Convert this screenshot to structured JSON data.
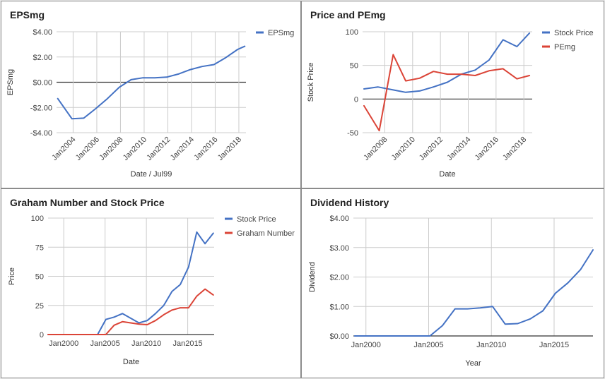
{
  "chart_data": [
    {
      "type": "line",
      "title": "EPSmg",
      "xlabel": "Date / Jul99",
      "ylabel": "EPSmg",
      "x_axis": "date",
      "x_tick_labels": [
        "Jan2004",
        "Jan2006",
        "Jan2008",
        "Jan2010",
        "Jan2012",
        "Jan2014",
        "Jan2016",
        "Jan2018"
      ],
      "x_ticks": [
        2004,
        2006,
        2008,
        2010,
        2012,
        2014,
        2016,
        2018
      ],
      "xlim": [
        2002.6,
        2018.6
      ],
      "y_tick_labels": [
        "$4.00",
        "$2.00",
        "$0.00",
        "-$2.00",
        "-$4.00"
      ],
      "y_ticks": [
        4,
        2,
        0,
        -2,
        -4
      ],
      "ylim": [
        -4,
        4
      ],
      "grid": true,
      "legend_position": "right",
      "series": [
        {
          "name": "EPSmg",
          "color": "#4472c4",
          "x": [
            2002.7,
            2003.9,
            2004.9,
            2005.9,
            2006.9,
            2007.9,
            2008.9,
            2009.9,
            2010.9,
            2011.9,
            2012.9,
            2013.9,
            2014.9,
            2015.9,
            2016.9,
            2017.9,
            2018.5
          ],
          "values": [
            -1.3,
            -2.9,
            -2.85,
            -2.1,
            -1.3,
            -0.4,
            0.2,
            0.35,
            0.35,
            0.4,
            0.65,
            1.0,
            1.25,
            1.4,
            1.95,
            2.6,
            2.85
          ]
        }
      ]
    },
    {
      "type": "line",
      "title": "Price and PEmg",
      "xlabel": "Date",
      "ylabel": "Stock Price",
      "x_axis": "date",
      "x_tick_labels": [
        "Jan2008",
        "Jan2010",
        "Jan2012",
        "Jan2014",
        "Jan2016",
        "Jan2018"
      ],
      "x_ticks": [
        2008,
        2010,
        2012,
        2014,
        2016,
        2018
      ],
      "xlim": [
        2006.4,
        2018.6
      ],
      "y_tick_labels": [
        "100",
        "50",
        "0",
        "-50"
      ],
      "y_ticks": [
        100,
        50,
        0,
        -50
      ],
      "ylim": [
        -50,
        100
      ],
      "grid": true,
      "legend_position": "right",
      "series": [
        {
          "name": "Stock Price",
          "color": "#4472c4",
          "x": [
            2006.5,
            2007.5,
            2008.5,
            2009.5,
            2010.5,
            2011.5,
            2012.5,
            2013.5,
            2014.5,
            2015.5,
            2016.5,
            2017.5,
            2018.4
          ],
          "values": [
            15,
            18,
            14,
            10,
            12,
            18,
            25,
            37,
            43,
            58,
            88,
            78,
            98
          ]
        },
        {
          "name": "PEmg",
          "color": "#db4437",
          "x": [
            2006.5,
            2007.6,
            2008.6,
            2009.5,
            2010.5,
            2011.5,
            2012.5,
            2013.5,
            2014.5,
            2015.5,
            2016.5,
            2017.5,
            2018.4
          ],
          "values": [
            -10,
            -47,
            66,
            27,
            31,
            41,
            37,
            37,
            35,
            42,
            45,
            30,
            35
          ]
        }
      ]
    },
    {
      "type": "line",
      "title": "Graham Number and Stock Price",
      "xlabel": "Date",
      "ylabel": "Price",
      "x_axis": "date",
      "x_tick_labels": [
        "Jan2000",
        "Jan2005",
        "Jan2010",
        "Jan2015"
      ],
      "x_ticks": [
        2000,
        2005,
        2010,
        2015
      ],
      "xlim": [
        1998.1,
        2018.2
      ],
      "y_tick_labels": [
        "100",
        "75",
        "50",
        "25",
        "0"
      ],
      "y_ticks": [
        100,
        75,
        50,
        25,
        0
      ],
      "ylim": [
        0,
        100
      ],
      "grid": true,
      "legend_position": "right",
      "series": [
        {
          "name": "Stock Price",
          "color": "#4472c4",
          "x": [
            1998.1,
            1999.1,
            2000.1,
            2001.1,
            2002.1,
            2003.1,
            2004.1,
            2005.1,
            2006.1,
            2007.1,
            2008.1,
            2009.1,
            2010.1,
            2011.1,
            2012.1,
            2013.1,
            2014.1,
            2015.1,
            2016.1,
            2017.1,
            2018.1
          ],
          "values": [
            0,
            0,
            0,
            0,
            0,
            0,
            0,
            13,
            15,
            18,
            14,
            10,
            12,
            18,
            25,
            37,
            43,
            58,
            88,
            78,
            87
          ]
        },
        {
          "name": "Graham Number",
          "color": "#db4437",
          "x": [
            1998.1,
            1999.1,
            2000.1,
            2001.1,
            2002.1,
            2003.1,
            2004.1,
            2005.1,
            2006.1,
            2007.1,
            2008.1,
            2009.1,
            2010.1,
            2011.1,
            2012.1,
            2013.1,
            2014.1,
            2015.1,
            2016.1,
            2017.1,
            2018.1
          ],
          "values": [
            0,
            0,
            0,
            0,
            0,
            0,
            0,
            0,
            8,
            11,
            10,
            9,
            8.5,
            12,
            17,
            21,
            23,
            23,
            33,
            39,
            34
          ]
        }
      ]
    },
    {
      "type": "line",
      "title": "Dividend History",
      "xlabel": "Year",
      "ylabel": "Dividend",
      "x_tick_labels": [
        "Jan2000",
        "Jan2005",
        "Jan2010",
        "Jan2015"
      ],
      "x_ticks": [
        2000,
        2005,
        2010,
        2015
      ],
      "xlim": [
        1999,
        2018.1
      ],
      "y_tick_labels": [
        "$4.00",
        "$3.00",
        "$2.00",
        "$1.00",
        "$0.00"
      ],
      "y_ticks": [
        4,
        3,
        2,
        1,
        0
      ],
      "ylim": [
        0,
        4
      ],
      "grid": true,
      "series": [
        {
          "name": "",
          "color": "#4472c4",
          "x": [
            1999.1,
            2000.1,
            2001.1,
            2002.1,
            2003.1,
            2004.1,
            2005.1,
            2006.1,
            2007.1,
            2008.1,
            2009.1,
            2010.1,
            2011.1,
            2012.1,
            2013.1,
            2014.1,
            2015.1,
            2016.1,
            2017.1,
            2018.1
          ],
          "values": [
            0,
            0,
            0,
            0,
            0,
            0,
            0,
            0.35,
            0.92,
            0.92,
            0.95,
            1.0,
            0.4,
            0.42,
            0.58,
            0.85,
            1.45,
            1.8,
            2.25,
            2.92
          ]
        }
      ]
    }
  ]
}
